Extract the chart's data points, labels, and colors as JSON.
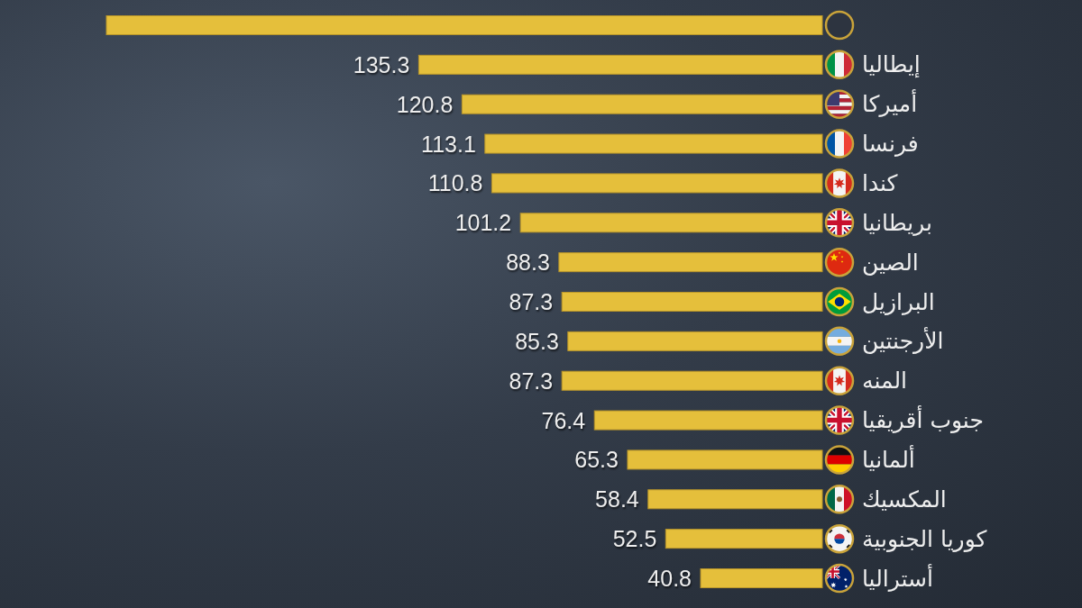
{
  "chart_data": {
    "type": "bar",
    "orientation": "horizontal",
    "categories": [
      null,
      "إيطاليا",
      "أميركا",
      "فرنسا",
      "كندا",
      "بريطانيا",
      "الصين",
      "البرازيل",
      "الأرجنتين",
      "المنه",
      "جنوب أقريقيا",
      "ألمانيا",
      "المكسيك",
      "كوريا الجنوبية",
      "أستراليا"
    ],
    "values": [
      240,
      135.3,
      120.8,
      113.1,
      110.8,
      101.2,
      88.3,
      87.3,
      85.3,
      87.3,
      76.4,
      65.3,
      58.4,
      52.5,
      40.8
    ],
    "value_labels": [
      null,
      "135.3",
      "120.8",
      "113.1",
      "110.8",
      "101.2",
      "88.3",
      "87.3",
      "85.3",
      "87.3",
      "76.4",
      "65.3",
      "58.4",
      "52.5",
      "40.8"
    ],
    "color": "#e5bf3b"
  }
}
